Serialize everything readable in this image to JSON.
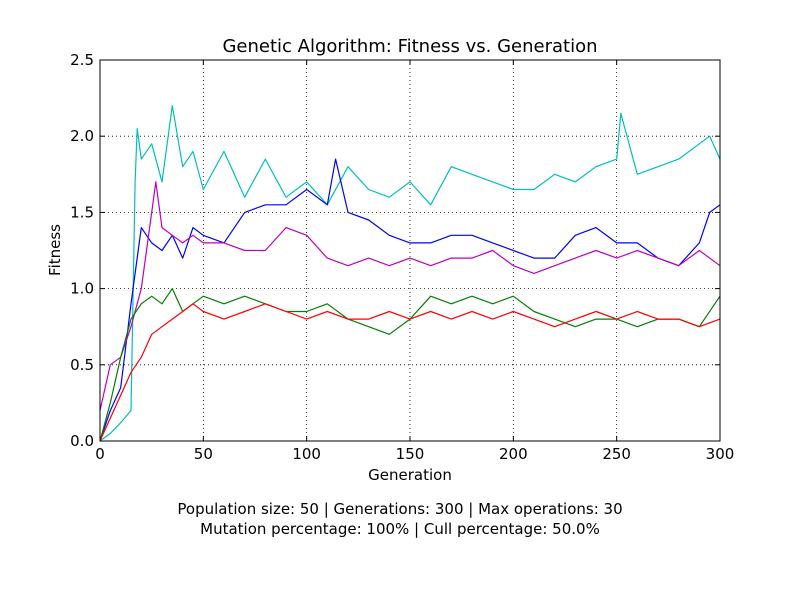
{
  "chart_data": {
    "type": "line",
    "title": "Genetic Algorithm: Fitness vs. Generation",
    "xlabel": "Generation",
    "ylabel": "Fitness",
    "xlim": [
      0,
      300
    ],
    "ylim": [
      0,
      2.5
    ],
    "xticks": [
      0,
      50,
      100,
      150,
      200,
      250,
      300
    ],
    "yticks": [
      0.0,
      0.5,
      1.0,
      1.5,
      2.0,
      2.5
    ],
    "xtick_labels": [
      "0",
      "50",
      "100",
      "150",
      "200",
      "250",
      "300"
    ],
    "ytick_labels": [
      "0.0",
      "0.5",
      "1.0",
      "1.5",
      "2.0",
      "2.5"
    ],
    "grid": true,
    "grid_style": "dotted",
    "legend": "none",
    "series": [
      {
        "color": "#00bfbf",
        "x": [
          0,
          5,
          10,
          15,
          17,
          18,
          20,
          25,
          30,
          35,
          40,
          45,
          50,
          60,
          70,
          80,
          90,
          100,
          110,
          120,
          130,
          140,
          150,
          160,
          170,
          180,
          190,
          200,
          210,
          220,
          230,
          240,
          250,
          252,
          260,
          270,
          280,
          290,
          295,
          300
        ],
        "y": [
          0.0,
          0.05,
          0.12,
          0.2,
          1.7,
          2.05,
          1.85,
          1.95,
          1.7,
          2.2,
          1.8,
          1.9,
          1.65,
          1.9,
          1.6,
          1.85,
          1.6,
          1.7,
          1.55,
          1.8,
          1.65,
          1.6,
          1.7,
          1.55,
          1.8,
          1.75,
          1.7,
          1.65,
          1.65,
          1.75,
          1.7,
          1.8,
          1.85,
          2.15,
          1.75,
          1.8,
          1.85,
          1.95,
          2.0,
          1.85
        ]
      },
      {
        "color": "#0000ff",
        "x": [
          0,
          5,
          10,
          15,
          20,
          25,
          30,
          35,
          40,
          45,
          50,
          60,
          70,
          80,
          90,
          100,
          110,
          114,
          120,
          130,
          140,
          150,
          160,
          170,
          180,
          190,
          200,
          210,
          220,
          230,
          240,
          250,
          260,
          270,
          280,
          290,
          295,
          300
        ],
        "y": [
          0.0,
          0.2,
          0.35,
          0.9,
          1.4,
          1.3,
          1.25,
          1.35,
          1.2,
          1.4,
          1.35,
          1.3,
          1.5,
          1.55,
          1.55,
          1.65,
          1.55,
          1.85,
          1.5,
          1.45,
          1.35,
          1.3,
          1.3,
          1.35,
          1.35,
          1.3,
          1.25,
          1.2,
          1.2,
          1.35,
          1.4,
          1.3,
          1.3,
          1.2,
          1.15,
          1.3,
          1.5,
          1.55
        ]
      },
      {
        "color": "#bf00bf",
        "x": [
          0,
          5,
          10,
          15,
          20,
          25,
          27,
          30,
          35,
          40,
          45,
          50,
          60,
          70,
          80,
          90,
          100,
          110,
          120,
          130,
          140,
          150,
          160,
          170,
          180,
          190,
          200,
          210,
          220,
          230,
          240,
          250,
          260,
          270,
          280,
          290,
          300
        ],
        "y": [
          0.2,
          0.5,
          0.55,
          0.75,
          1.0,
          1.5,
          1.7,
          1.4,
          1.35,
          1.3,
          1.35,
          1.3,
          1.3,
          1.25,
          1.25,
          1.4,
          1.35,
          1.2,
          1.15,
          1.2,
          1.15,
          1.2,
          1.15,
          1.2,
          1.2,
          1.25,
          1.15,
          1.1,
          1.15,
          1.2,
          1.25,
          1.2,
          1.25,
          1.2,
          1.15,
          1.25,
          1.15
        ]
      },
      {
        "color": "#008000",
        "x": [
          0,
          5,
          10,
          15,
          20,
          25,
          30,
          35,
          40,
          45,
          50,
          60,
          70,
          80,
          90,
          100,
          110,
          120,
          130,
          140,
          150,
          160,
          170,
          180,
          190,
          200,
          210,
          220,
          230,
          240,
          250,
          260,
          270,
          280,
          290,
          300
        ],
        "y": [
          0.0,
          0.25,
          0.55,
          0.8,
          0.9,
          0.95,
          0.9,
          1.0,
          0.85,
          0.9,
          0.95,
          0.9,
          0.95,
          0.9,
          0.85,
          0.85,
          0.9,
          0.8,
          0.75,
          0.7,
          0.8,
          0.95,
          0.9,
          0.95,
          0.9,
          0.95,
          0.85,
          0.8,
          0.75,
          0.8,
          0.8,
          0.75,
          0.8,
          0.8,
          0.75,
          0.95
        ]
      },
      {
        "color": "#ff0000",
        "x": [
          0,
          5,
          10,
          15,
          20,
          25,
          30,
          35,
          40,
          45,
          50,
          60,
          70,
          80,
          90,
          100,
          110,
          120,
          130,
          140,
          150,
          160,
          170,
          180,
          190,
          200,
          210,
          220,
          230,
          240,
          250,
          260,
          270,
          280,
          290,
          300
        ],
        "y": [
          0.0,
          0.15,
          0.3,
          0.45,
          0.55,
          0.7,
          0.75,
          0.8,
          0.85,
          0.9,
          0.85,
          0.8,
          0.85,
          0.9,
          0.85,
          0.8,
          0.85,
          0.8,
          0.8,
          0.85,
          0.8,
          0.85,
          0.8,
          0.85,
          0.8,
          0.85,
          0.8,
          0.75,
          0.8,
          0.85,
          0.8,
          0.85,
          0.8,
          0.8,
          0.75,
          0.8
        ]
      }
    ]
  },
  "caption": {
    "line1": "Population size: 50 | Generations: 300 | Max operations: 30",
    "line2": "Mutation percentage: 100% | Cull percentage: 50.0%"
  }
}
